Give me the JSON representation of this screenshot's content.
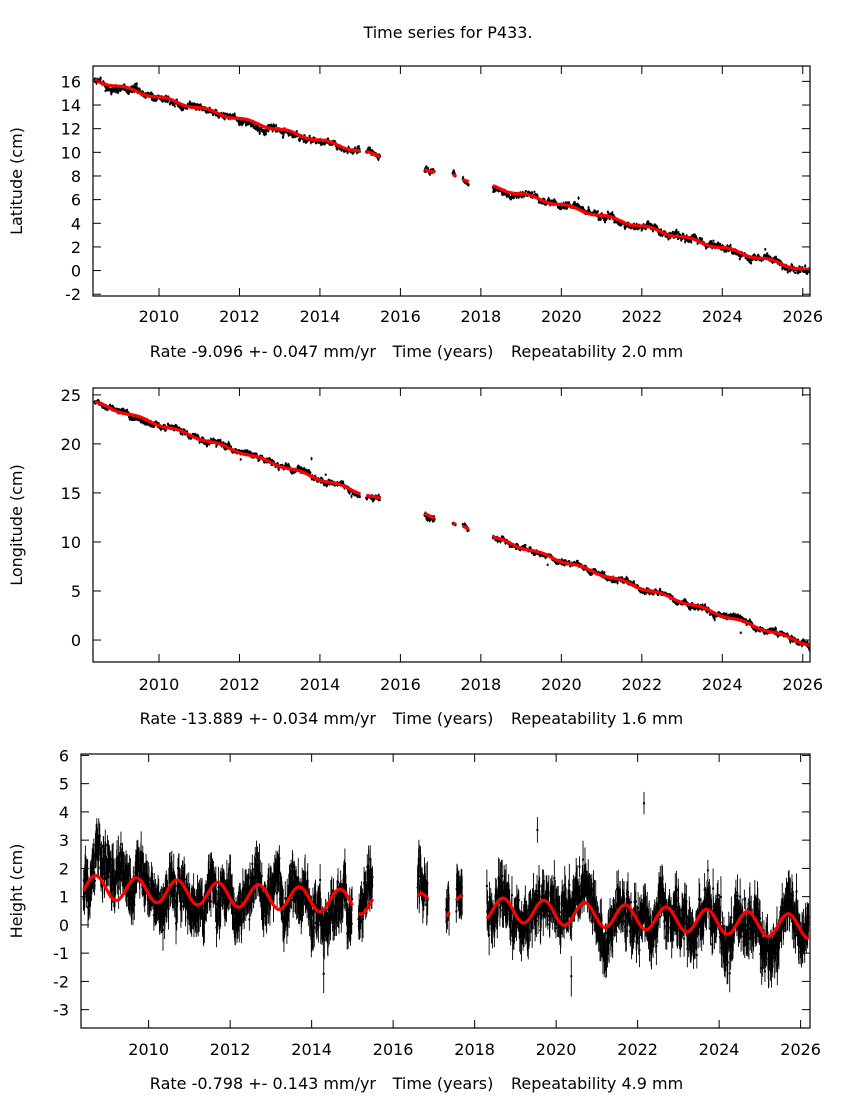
{
  "title": "Time series for P433.",
  "colors": {
    "data": "#000000",
    "fit": "#ff0000",
    "axis": "#000000"
  },
  "chart_data": [
    {
      "type": "scatter",
      "ylabel": "Latitude (cm)",
      "rate_label": "Rate -9.096 +- 0.047 mm/yr",
      "xlabel": "Time (years)",
      "repeat_label": "Repeatability 2.0 mm",
      "xlim": [
        2008.36,
        2026.18
      ],
      "ylim": [
        -2.15,
        17.3
      ],
      "xticks": [
        2010,
        2012,
        2014,
        2016,
        2018,
        2020,
        2022,
        2024,
        2026
      ],
      "yticks": [
        -2,
        0,
        2,
        4,
        6,
        8,
        10,
        12,
        14,
        16
      ],
      "segments": [
        [
          2008.4,
          2015.0
        ],
        [
          2015.15,
          2015.5
        ],
        [
          2016.6,
          2016.85
        ],
        [
          2017.3,
          2017.38
        ],
        [
          2017.55,
          2017.7
        ],
        [
          2018.3,
          2026.18
        ]
      ],
      "model": {
        "t0": 2008.4,
        "y0": 16.1,
        "rate_cm_per_yr": -0.9096,
        "annual_amp": 0.12,
        "annual_phase": 0.2,
        "noise": 0.18,
        "err": 0.12
      }
    },
    {
      "type": "scatter",
      "ylabel": "Longitude (cm)",
      "rate_label": "Rate -13.889 +- 0.034 mm/yr",
      "xlabel": "Time (years)",
      "repeat_label": "Repeatability 1.6 mm",
      "xlim": [
        2008.36,
        2026.18
      ],
      "ylim": [
        -2.24,
        25.7
      ],
      "xticks": [
        2010,
        2012,
        2014,
        2016,
        2018,
        2020,
        2022,
        2024,
        2026
      ],
      "yticks": [
        0,
        5,
        10,
        15,
        20,
        25
      ],
      "segments": [
        [
          2008.4,
          2015.0
        ],
        [
          2015.15,
          2015.5
        ],
        [
          2016.6,
          2016.85
        ],
        [
          2017.3,
          2017.38
        ],
        [
          2017.55,
          2017.7
        ],
        [
          2018.3,
          2026.18
        ]
      ],
      "model": {
        "t0": 2008.4,
        "y0": 24.2,
        "rate_cm_per_yr": -1.3889,
        "annual_amp": 0.12,
        "annual_phase": 0.5,
        "noise": 0.18,
        "err": 0.15
      }
    },
    {
      "type": "scatter",
      "ylabel": "Height (cm)",
      "rate_label": "Rate -0.798 +- 0.143 mm/yr",
      "xlabel": "Time (years)",
      "repeat_label": "Repeatability 4.9 mm",
      "xlim": [
        2008.34,
        2026.23
      ],
      "ylim": [
        -3.65,
        6.05
      ],
      "xticks": [
        2010,
        2012,
        2014,
        2016,
        2018,
        2020,
        2022,
        2024,
        2026
      ],
      "yticks": [
        -3,
        -2,
        -1,
        0,
        1,
        2,
        3,
        4,
        5,
        6
      ],
      "segments": [
        [
          2008.4,
          2015.0
        ],
        [
          2015.15,
          2015.5
        ],
        [
          2016.6,
          2016.85
        ],
        [
          2017.3,
          2017.38
        ],
        [
          2017.55,
          2017.7
        ],
        [
          2018.3,
          2026.2
        ]
      ],
      "model": {
        "t0": 2008.4,
        "y0": 1.35,
        "rate_cm_per_yr": -0.0798,
        "annual_amp": 0.42,
        "annual_phase": 0.7,
        "noise": 0.5,
        "err": 0.55
      }
    }
  ]
}
